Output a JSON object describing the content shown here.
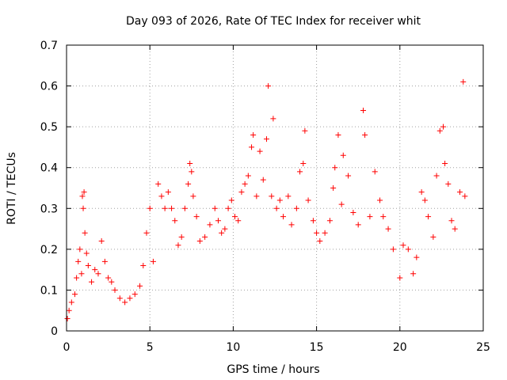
{
  "chart_data": {
    "type": "scatter",
    "title": "Day 093 of 2026, Rate Of TEC Index for receiver whit",
    "xlabel": "GPS time / hours",
    "ylabel": "ROTI / TECUs",
    "xlim": [
      0,
      25
    ],
    "ylim": [
      0,
      0.7
    ],
    "xticks": [
      0,
      5,
      10,
      15,
      20,
      25
    ],
    "xtick_labels": [
      "0",
      "5",
      "10",
      "15",
      "20",
      "25"
    ],
    "yticks": [
      0,
      0.1,
      0.2,
      0.3,
      0.4,
      0.5,
      0.6,
      0.7
    ],
    "ytick_labels": [
      "0",
      "0.1",
      "0.2",
      "0.3",
      "0.4",
      "0.5",
      "0.6",
      "0.7"
    ],
    "grid": true,
    "marker": "+",
    "color": "#ff0000",
    "series": [
      {
        "points": [
          [
            0.05,
            0.03
          ],
          [
            0.15,
            0.05
          ],
          [
            0.3,
            0.07
          ],
          [
            0.5,
            0.09
          ],
          [
            0.6,
            0.13
          ],
          [
            0.7,
            0.17
          ],
          [
            0.8,
            0.2
          ],
          [
            0.9,
            0.14
          ],
          [
            0.95,
            0.33
          ],
          [
            1.0,
            0.3
          ],
          [
            1.05,
            0.34
          ],
          [
            1.1,
            0.24
          ],
          [
            1.2,
            0.19
          ],
          [
            1.3,
            0.16
          ],
          [
            1.5,
            0.12
          ],
          [
            1.7,
            0.15
          ],
          [
            1.9,
            0.14
          ],
          [
            2.1,
            0.22
          ],
          [
            2.3,
            0.17
          ],
          [
            2.5,
            0.13
          ],
          [
            2.7,
            0.12
          ],
          [
            2.9,
            0.1
          ],
          [
            3.2,
            0.08
          ],
          [
            3.5,
            0.07
          ],
          [
            3.8,
            0.08
          ],
          [
            4.1,
            0.09
          ],
          [
            4.4,
            0.11
          ],
          [
            4.6,
            0.16
          ],
          [
            4.8,
            0.24
          ],
          [
            5.0,
            0.3
          ],
          [
            5.2,
            0.17
          ],
          [
            5.5,
            0.36
          ],
          [
            5.7,
            0.33
          ],
          [
            5.9,
            0.3
          ],
          [
            6.1,
            0.34
          ],
          [
            6.3,
            0.3
          ],
          [
            6.5,
            0.27
          ],
          [
            6.7,
            0.21
          ],
          [
            6.9,
            0.23
          ],
          [
            7.1,
            0.3
          ],
          [
            7.3,
            0.36
          ],
          [
            7.4,
            0.41
          ],
          [
            7.5,
            0.39
          ],
          [
            7.6,
            0.33
          ],
          [
            7.8,
            0.28
          ],
          [
            8.0,
            0.22
          ],
          [
            8.3,
            0.23
          ],
          [
            8.6,
            0.26
          ],
          [
            8.9,
            0.3
          ],
          [
            9.1,
            0.27
          ],
          [
            9.3,
            0.24
          ],
          [
            9.5,
            0.25
          ],
          [
            9.7,
            0.3
          ],
          [
            9.9,
            0.32
          ],
          [
            10.1,
            0.28
          ],
          [
            10.3,
            0.27
          ],
          [
            10.5,
            0.34
          ],
          [
            10.7,
            0.36
          ],
          [
            10.9,
            0.38
          ],
          [
            11.1,
            0.45
          ],
          [
            11.2,
            0.48
          ],
          [
            11.4,
            0.33
          ],
          [
            11.6,
            0.44
          ],
          [
            11.8,
            0.37
          ],
          [
            12.0,
            0.47
          ],
          [
            12.1,
            0.6
          ],
          [
            12.3,
            0.33
          ],
          [
            12.4,
            0.52
          ],
          [
            12.6,
            0.3
          ],
          [
            12.8,
            0.32
          ],
          [
            13.0,
            0.28
          ],
          [
            13.3,
            0.33
          ],
          [
            13.5,
            0.26
          ],
          [
            13.8,
            0.3
          ],
          [
            14.0,
            0.39
          ],
          [
            14.2,
            0.41
          ],
          [
            14.3,
            0.49
          ],
          [
            14.5,
            0.32
          ],
          [
            14.8,
            0.27
          ],
          [
            15.0,
            0.24
          ],
          [
            15.2,
            0.22
          ],
          [
            15.5,
            0.24
          ],
          [
            15.8,
            0.27
          ],
          [
            16.0,
            0.35
          ],
          [
            16.1,
            0.4
          ],
          [
            16.3,
            0.48
          ],
          [
            16.5,
            0.31
          ],
          [
            16.6,
            0.43
          ],
          [
            16.9,
            0.38
          ],
          [
            17.2,
            0.29
          ],
          [
            17.5,
            0.26
          ],
          [
            17.8,
            0.54
          ],
          [
            17.9,
            0.48
          ],
          [
            18.2,
            0.28
          ],
          [
            18.5,
            0.39
          ],
          [
            18.8,
            0.32
          ],
          [
            19.0,
            0.28
          ],
          [
            19.3,
            0.25
          ],
          [
            19.6,
            0.2
          ],
          [
            20.0,
            0.13
          ],
          [
            20.2,
            0.21
          ],
          [
            20.5,
            0.2
          ],
          [
            20.8,
            0.14
          ],
          [
            21.0,
            0.18
          ],
          [
            21.3,
            0.34
          ],
          [
            21.5,
            0.32
          ],
          [
            21.7,
            0.28
          ],
          [
            22.0,
            0.23
          ],
          [
            22.2,
            0.38
          ],
          [
            22.4,
            0.49
          ],
          [
            22.6,
            0.5
          ],
          [
            22.7,
            0.41
          ],
          [
            22.9,
            0.36
          ],
          [
            23.1,
            0.27
          ],
          [
            23.3,
            0.25
          ],
          [
            23.6,
            0.34
          ],
          [
            23.8,
            0.61
          ],
          [
            23.9,
            0.33
          ]
        ]
      }
    ]
  }
}
